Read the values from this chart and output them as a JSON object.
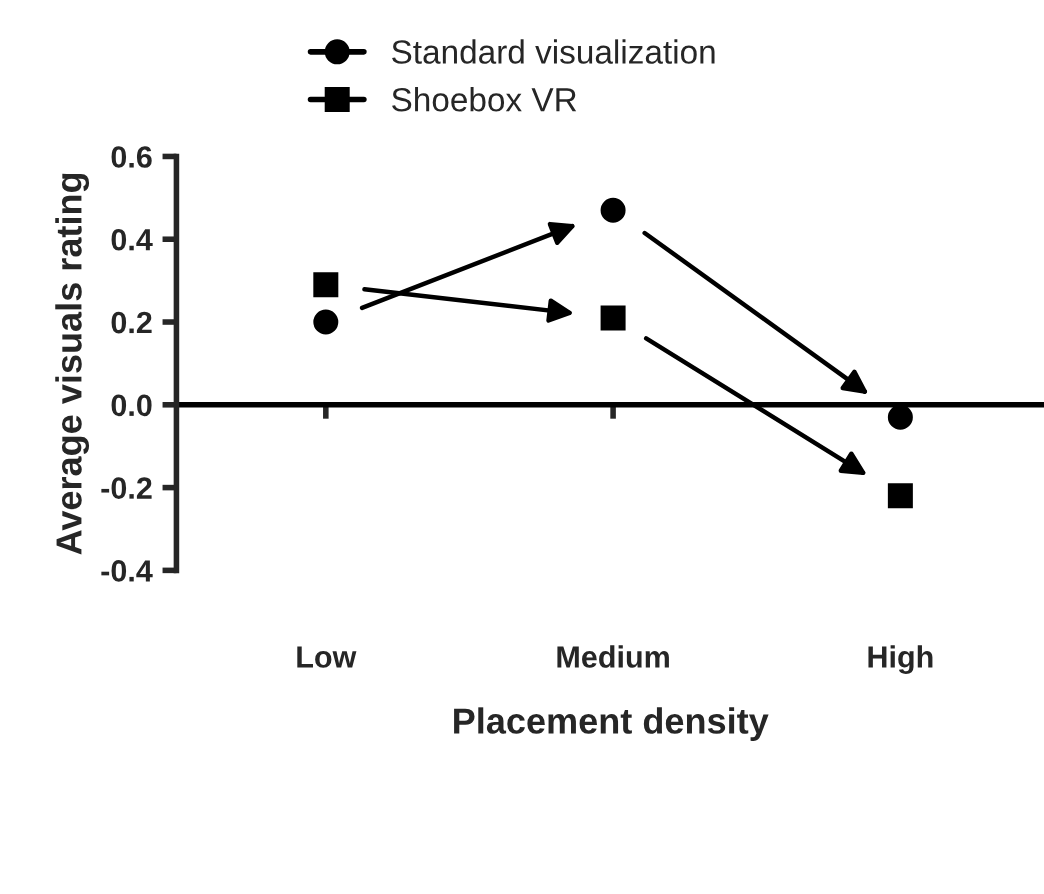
{
  "chart_data": {
    "type": "scatter",
    "line_style": "solid",
    "xlabel": "Placement density",
    "ylabel": "Average visuals rating",
    "categories": [
      "Low",
      "Medium",
      "High"
    ],
    "series": [
      {
        "name": "Standard visualization",
        "color": "#000000",
        "marker": "circle",
        "values": [
          0.2,
          0.47,
          -0.03
        ]
      },
      {
        "name": "Shoebox VR",
        "color": "#000000",
        "marker": "square",
        "values": [
          0.29,
          0.21,
          -0.22
        ]
      }
    ],
    "ylim": [
      -0.4,
      0.6
    ],
    "yticks": [
      {
        "value": -0.4,
        "label": "-0.4"
      },
      {
        "value": -0.2,
        "label": "-0.2"
      },
      {
        "value": 0,
        "label": "0.0"
      },
      {
        "value": 0.2,
        "label": "0.2"
      },
      {
        "value": 0.4,
        "label": "0.4"
      },
      {
        "value": 0.6,
        "label": "0.6"
      }
    ],
    "ref_lines": [
      {
        "axis": "y",
        "value": 0,
        "color": "#000000"
      }
    ],
    "legend": "top"
  }
}
